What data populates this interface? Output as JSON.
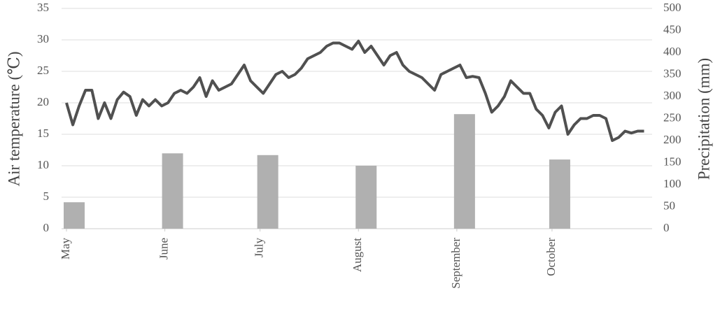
{
  "chart_data": {
    "type": "bar-line",
    "ylabel": "Air temperature (℃)",
    "y2label": "Precipitation (mm)",
    "xlim": [
      0,
      183
    ],
    "xticks": [
      {
        "value": 0,
        "label": "May"
      },
      {
        "value": 31,
        "label": "June"
      },
      {
        "value": 61,
        "label": "July"
      },
      {
        "value": 92,
        "label": "August"
      },
      {
        "value": 123,
        "label": "September"
      },
      {
        "value": 153,
        "label": "October"
      }
    ],
    "ylim": [
      0,
      35
    ],
    "yticks": [
      0,
      5,
      10,
      15,
      20,
      25,
      30,
      35
    ],
    "y2lim": [
      0,
      500
    ],
    "y2ticks": [
      0,
      50,
      100,
      150,
      200,
      250,
      300,
      350,
      400,
      450,
      500
    ],
    "grid": true,
    "series": [
      {
        "type": "bar",
        "axis": "y2",
        "color": "#b0b0b0",
        "x": [
          0,
          31,
          61,
          92,
          123,
          153
        ],
        "values": [
          60,
          171,
          167,
          143,
          260,
          157
        ]
      },
      {
        "type": "line",
        "axis": "y",
        "color": "#505050",
        "x": [
          0,
          2,
          4,
          6,
          8,
          10,
          12,
          14,
          16,
          18,
          20,
          22,
          24,
          26,
          28,
          30,
          32,
          34,
          36,
          38,
          40,
          42,
          44,
          46,
          48,
          50,
          52,
          54,
          56,
          58,
          60,
          62,
          64,
          66,
          68,
          70,
          72,
          74,
          76,
          78,
          80,
          82,
          84,
          86,
          88,
          90,
          92,
          94,
          96,
          98,
          100,
          102,
          104,
          106,
          108,
          110,
          112,
          114,
          116,
          118,
          120,
          122,
          124,
          126,
          128,
          130,
          132,
          134,
          136,
          138,
          140,
          142,
          144,
          146,
          148,
          150,
          152,
          154,
          156,
          158,
          160,
          162,
          164,
          166,
          168,
          170,
          172,
          174,
          176,
          178,
          180,
          182
        ],
        "values": [
          20,
          16.5,
          19.5,
          22,
          22,
          17.5,
          20,
          17.5,
          20.5,
          21.7,
          21,
          18,
          20.5,
          19.5,
          20.5,
          19.5,
          20,
          21.5,
          22,
          21.5,
          22.5,
          24,
          21,
          23.5,
          22,
          22.5,
          23,
          24.5,
          26,
          23.5,
          22.5,
          21.5,
          23,
          24.5,
          25,
          24,
          24.5,
          25.5,
          27,
          27.5,
          28,
          29,
          29.5,
          29.5,
          29,
          28.5,
          29.8,
          28,
          29,
          27.5,
          26,
          27.5,
          28,
          26,
          25,
          24.5,
          24,
          23,
          22,
          24.5,
          25,
          25.5,
          26,
          24,
          24.2,
          24,
          21.5,
          18.5,
          19.5,
          21,
          23.5,
          22.5,
          21.5,
          21.5,
          19,
          18,
          16,
          18.5,
          19.5,
          15,
          16.5,
          17.5,
          17.5,
          18,
          18,
          17.5,
          14,
          14.5,
          15.5,
          15.2,
          15.5,
          15.5
        ]
      }
    ]
  }
}
